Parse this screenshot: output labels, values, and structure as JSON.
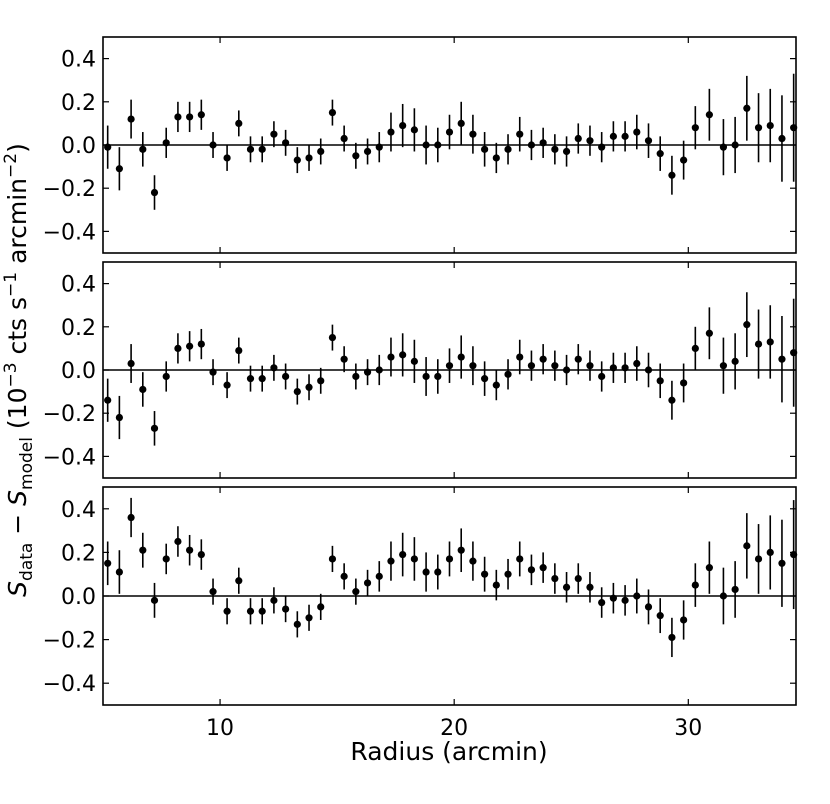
{
  "chart_data": {
    "type": "scatter",
    "xlabel": "Radius (arcmin)",
    "ylabel": "S_data − S_model (10^−3 cts s^−1 arcmin^−2)",
    "ylabel_parts": {
      "s": "S",
      "data": "data",
      "minus": " − ",
      "model": "model",
      "open": " (10",
      "exp1": "−3",
      "cts": " cts s",
      "exp2": "−1",
      "arc": " arcmin",
      "exp3": "−2",
      "close": ")"
    },
    "xlim": [
      5.0,
      34.6
    ],
    "ylim": [
      -0.5,
      0.5
    ],
    "xticks": [
      10,
      20,
      30
    ],
    "xtick_labels": [
      "10",
      "20",
      "30"
    ],
    "yticks": [
      -0.4,
      -0.2,
      0.0,
      0.2,
      0.4
    ],
    "ytick_labels": [
      "−0.4",
      "−0.2",
      "0.0",
      "0.2",
      "0.4"
    ],
    "x": [
      5.2,
      5.7,
      6.2,
      6.7,
      7.2,
      7.7,
      8.2,
      8.7,
      9.2,
      9.7,
      10.3,
      10.8,
      11.3,
      11.8,
      12.3,
      12.8,
      13.3,
      13.8,
      14.3,
      14.8,
      15.3,
      15.8,
      16.3,
      16.8,
      17.3,
      17.8,
      18.3,
      18.8,
      19.3,
      19.8,
      20.3,
      20.8,
      21.3,
      21.8,
      22.3,
      22.8,
      23.3,
      23.8,
      24.3,
      24.8,
      25.3,
      25.8,
      26.3,
      26.8,
      27.3,
      27.8,
      28.3,
      28.8,
      29.3,
      29.8,
      30.3,
      30.9,
      31.5,
      32.0,
      32.5,
      33.0,
      33.5,
      34.0,
      34.5
    ],
    "panels": [
      {
        "name": "top",
        "y": [
          -0.01,
          -0.11,
          0.12,
          -0.02,
          -0.22,
          0.01,
          0.13,
          0.13,
          0.14,
          0.0,
          -0.06,
          0.1,
          -0.02,
          -0.02,
          0.05,
          0.01,
          -0.07,
          -0.06,
          -0.03,
          0.15,
          0.03,
          -0.05,
          -0.03,
          -0.01,
          0.06,
          0.09,
          0.07,
          0.0,
          0.0,
          0.06,
          0.1,
          0.05,
          -0.02,
          -0.06,
          -0.02,
          0.05,
          0.0,
          0.01,
          -0.02,
          -0.03,
          0.03,
          0.02,
          -0.01,
          0.04,
          0.04,
          0.06,
          0.02,
          -0.04,
          -0.14,
          -0.07,
          0.08,
          0.14,
          -0.01,
          0.0,
          0.17,
          0.08,
          0.09,
          0.03,
          0.08
        ],
        "yerr": [
          0.1,
          0.1,
          0.09,
          0.08,
          0.08,
          0.07,
          0.07,
          0.07,
          0.07,
          0.06,
          0.06,
          0.06,
          0.06,
          0.06,
          0.06,
          0.06,
          0.06,
          0.06,
          0.06,
          0.06,
          0.06,
          0.06,
          0.06,
          0.07,
          0.09,
          0.1,
          0.1,
          0.09,
          0.08,
          0.08,
          0.1,
          0.09,
          0.08,
          0.07,
          0.07,
          0.08,
          0.07,
          0.07,
          0.07,
          0.07,
          0.07,
          0.07,
          0.07,
          0.07,
          0.07,
          0.08,
          0.08,
          0.08,
          0.09,
          0.09,
          0.1,
          0.12,
          0.13,
          0.13,
          0.15,
          0.16,
          0.17,
          0.2,
          0.25
        ]
      },
      {
        "name": "middle",
        "y": [
          -0.14,
          -0.22,
          0.03,
          -0.09,
          -0.27,
          -0.03,
          0.1,
          0.11,
          0.12,
          -0.01,
          -0.07,
          0.09,
          -0.04,
          -0.04,
          0.01,
          -0.03,
          -0.1,
          -0.08,
          -0.05,
          0.15,
          0.05,
          -0.03,
          -0.01,
          0.0,
          0.06,
          0.07,
          0.04,
          -0.03,
          -0.03,
          0.02,
          0.06,
          0.02,
          -0.04,
          -0.07,
          -0.02,
          0.06,
          0.02,
          0.05,
          0.02,
          0.0,
          0.05,
          0.02,
          -0.03,
          0.01,
          0.01,
          0.03,
          0.0,
          -0.05,
          -0.14,
          -0.06,
          0.1,
          0.17,
          0.02,
          0.04,
          0.21,
          0.12,
          0.13,
          0.05,
          0.08
        ],
        "yerr": [
          0.1,
          0.1,
          0.09,
          0.08,
          0.08,
          0.07,
          0.07,
          0.07,
          0.07,
          0.06,
          0.06,
          0.06,
          0.06,
          0.06,
          0.06,
          0.06,
          0.06,
          0.06,
          0.06,
          0.06,
          0.06,
          0.06,
          0.06,
          0.07,
          0.09,
          0.1,
          0.1,
          0.09,
          0.08,
          0.08,
          0.1,
          0.09,
          0.08,
          0.07,
          0.07,
          0.08,
          0.07,
          0.07,
          0.07,
          0.07,
          0.07,
          0.07,
          0.07,
          0.07,
          0.07,
          0.08,
          0.08,
          0.08,
          0.09,
          0.09,
          0.1,
          0.12,
          0.13,
          0.13,
          0.15,
          0.16,
          0.17,
          0.2,
          0.25
        ]
      },
      {
        "name": "bottom",
        "y": [
          0.15,
          0.11,
          0.36,
          0.21,
          -0.02,
          0.17,
          0.25,
          0.21,
          0.19,
          0.02,
          -0.07,
          0.07,
          -0.07,
          -0.07,
          -0.02,
          -0.06,
          -0.13,
          -0.1,
          -0.05,
          0.17,
          0.09,
          0.02,
          0.06,
          0.09,
          0.16,
          0.19,
          0.17,
          0.11,
          0.11,
          0.17,
          0.21,
          0.16,
          0.1,
          0.05,
          0.1,
          0.17,
          0.12,
          0.13,
          0.08,
          0.04,
          0.08,
          0.04,
          -0.03,
          -0.01,
          -0.02,
          0.0,
          -0.05,
          -0.09,
          -0.19,
          -0.11,
          0.05,
          0.13,
          0.0,
          0.03,
          0.23,
          0.17,
          0.2,
          0.15,
          0.19
        ],
        "yerr": [
          0.1,
          0.1,
          0.09,
          0.08,
          0.08,
          0.07,
          0.07,
          0.07,
          0.07,
          0.06,
          0.06,
          0.06,
          0.06,
          0.06,
          0.06,
          0.06,
          0.06,
          0.06,
          0.06,
          0.06,
          0.06,
          0.06,
          0.06,
          0.07,
          0.09,
          0.1,
          0.1,
          0.09,
          0.08,
          0.08,
          0.1,
          0.09,
          0.08,
          0.07,
          0.07,
          0.08,
          0.07,
          0.07,
          0.07,
          0.07,
          0.07,
          0.07,
          0.07,
          0.07,
          0.07,
          0.08,
          0.08,
          0.08,
          0.09,
          0.09,
          0.1,
          0.12,
          0.13,
          0.13,
          0.15,
          0.16,
          0.17,
          0.2,
          0.25
        ]
      }
    ],
    "reference_line_y": 0.0,
    "grid": false,
    "marker_color": "#000000",
    "axis_color": "#000000"
  }
}
